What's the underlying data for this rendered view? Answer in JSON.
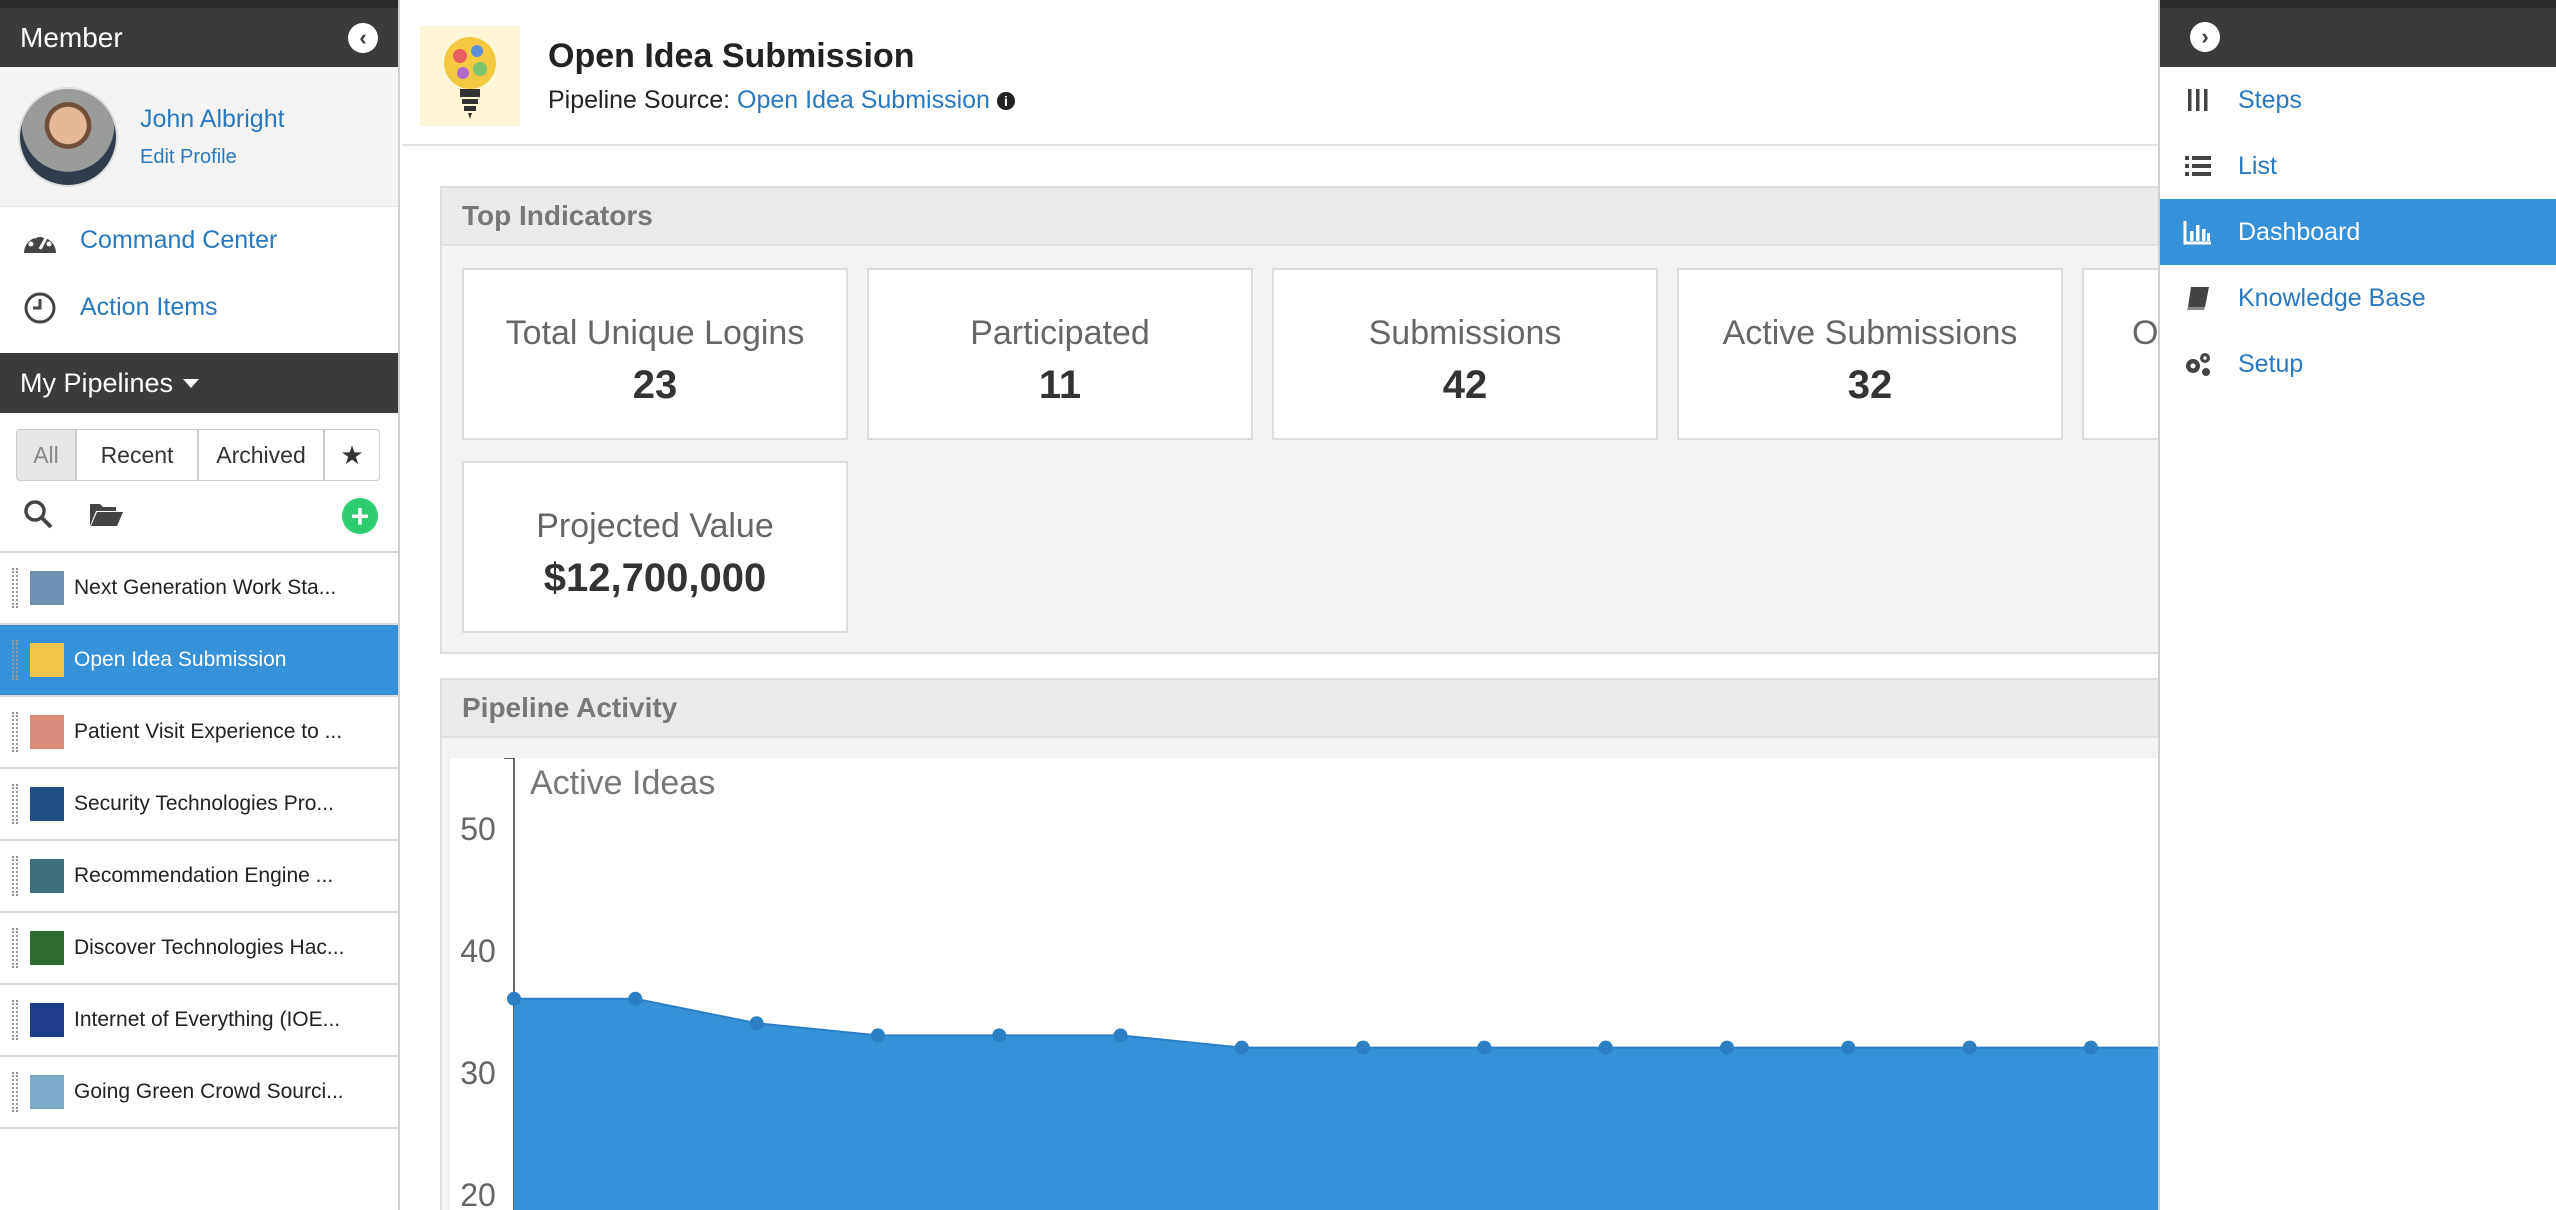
{
  "left": {
    "header": "Member",
    "user": {
      "name": "John Albright",
      "edit": "Edit Profile"
    },
    "nav": [
      {
        "label": "Command Center",
        "icon": "gauge-icon"
      },
      {
        "label": "Action Items",
        "icon": "clock-icon"
      }
    ],
    "pipelines_header": "My Pipelines",
    "filters": {
      "all": "All",
      "recent": "Recent",
      "archived": "Archived"
    },
    "pipelines": [
      {
        "label": "Next Generation Work Sta...",
        "color": "#6f8fb3",
        "active": false
      },
      {
        "label": "Open Idea Submission",
        "color": "#f0c44a",
        "active": true
      },
      {
        "label": "Patient Visit Experience to ...",
        "color": "#d98a7a",
        "active": false
      },
      {
        "label": "Security Technologies Pro...",
        "color": "#1f4f86",
        "active": false
      },
      {
        "label": "Recommendation Engine ...",
        "color": "#3c6f7a",
        "active": false
      },
      {
        "label": "Discover Technologies Hac...",
        "color": "#2f6b2e",
        "active": false
      },
      {
        "label": "Internet of Everything (IOE...",
        "color": "#1d3c8a",
        "active": false
      },
      {
        "label": "Going Green Crowd Sourci...",
        "color": "#7da9c9",
        "active": false
      }
    ]
  },
  "main": {
    "title": "Open Idea Submission",
    "source_label": "Pipeline Source:",
    "source_link": "Open Idea Submission",
    "indicators_title": "Top Indicators",
    "indicators": [
      {
        "label": "Total Unique Logins",
        "value": "23"
      },
      {
        "label": "Participated",
        "value": "11"
      },
      {
        "label": "Submissions",
        "value": "42"
      },
      {
        "label": "Active Submissions",
        "value": "32"
      },
      {
        "label": "O",
        "value": ""
      },
      {
        "label": "Projected Value",
        "value": "$12,700,000"
      }
    ],
    "activity_title": "Pipeline Activity"
  },
  "right": {
    "items": [
      {
        "label": "Steps",
        "icon": "columns-icon",
        "active": false
      },
      {
        "label": "List",
        "icon": "list-icon",
        "active": false
      },
      {
        "label": "Dashboard",
        "icon": "bar-chart-icon",
        "active": true
      },
      {
        "label": "Knowledge Base",
        "icon": "book-icon",
        "active": false
      },
      {
        "label": "Setup",
        "icon": "gears-icon",
        "active": false
      }
    ]
  },
  "colors": {
    "accent": "#3592d9",
    "link": "#2a78bf",
    "header_bg": "#3b3b3b",
    "add": "#2ecc71"
  },
  "chart_data": {
    "type": "area",
    "title": "Active Ideas",
    "ylim": [
      20,
      50
    ],
    "yticks": [
      "50",
      "40",
      "30",
      "20"
    ],
    "values": [
      36,
      36,
      34,
      33,
      33,
      33,
      32,
      32,
      32,
      32,
      32,
      32,
      32,
      32
    ]
  }
}
